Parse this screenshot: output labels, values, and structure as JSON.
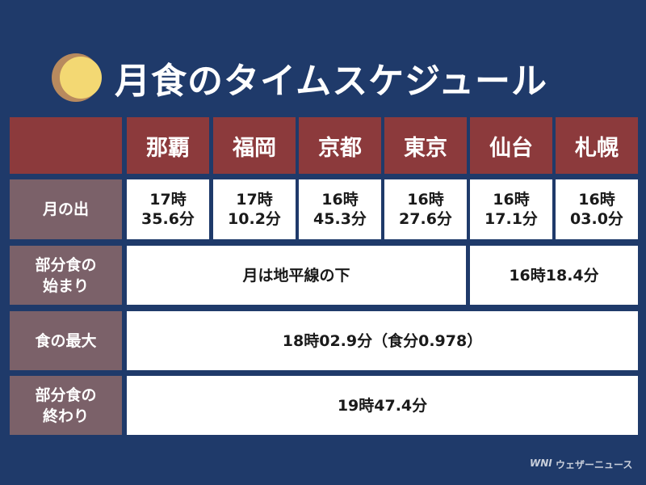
{
  "header": {
    "title": "月食のタイムスケジュール"
  },
  "table": {
    "columns": [
      "那覇",
      "福岡",
      "京都",
      "東京",
      "仙台",
      "札幌"
    ],
    "rows": [
      {
        "label": "月の出",
        "cells": [
          "17時\n35.6分",
          "17時\n10.2分",
          "16時\n45.3分",
          "16時\n27.6分",
          "16時\n17.1分",
          "16時\n03.0分"
        ]
      },
      {
        "label": "部分食の\n始まり",
        "cells": [
          "月は地平線の下",
          "16時18.4分"
        ]
      },
      {
        "label": "食の最大",
        "cells": [
          "18時02.9分（食分0.978）"
        ]
      },
      {
        "label": "部分食の\n終わり",
        "cells": [
          "19時47.4分"
        ]
      }
    ]
  },
  "footer": {
    "logo": "WNI",
    "brand": "ウェザーニュース"
  }
}
